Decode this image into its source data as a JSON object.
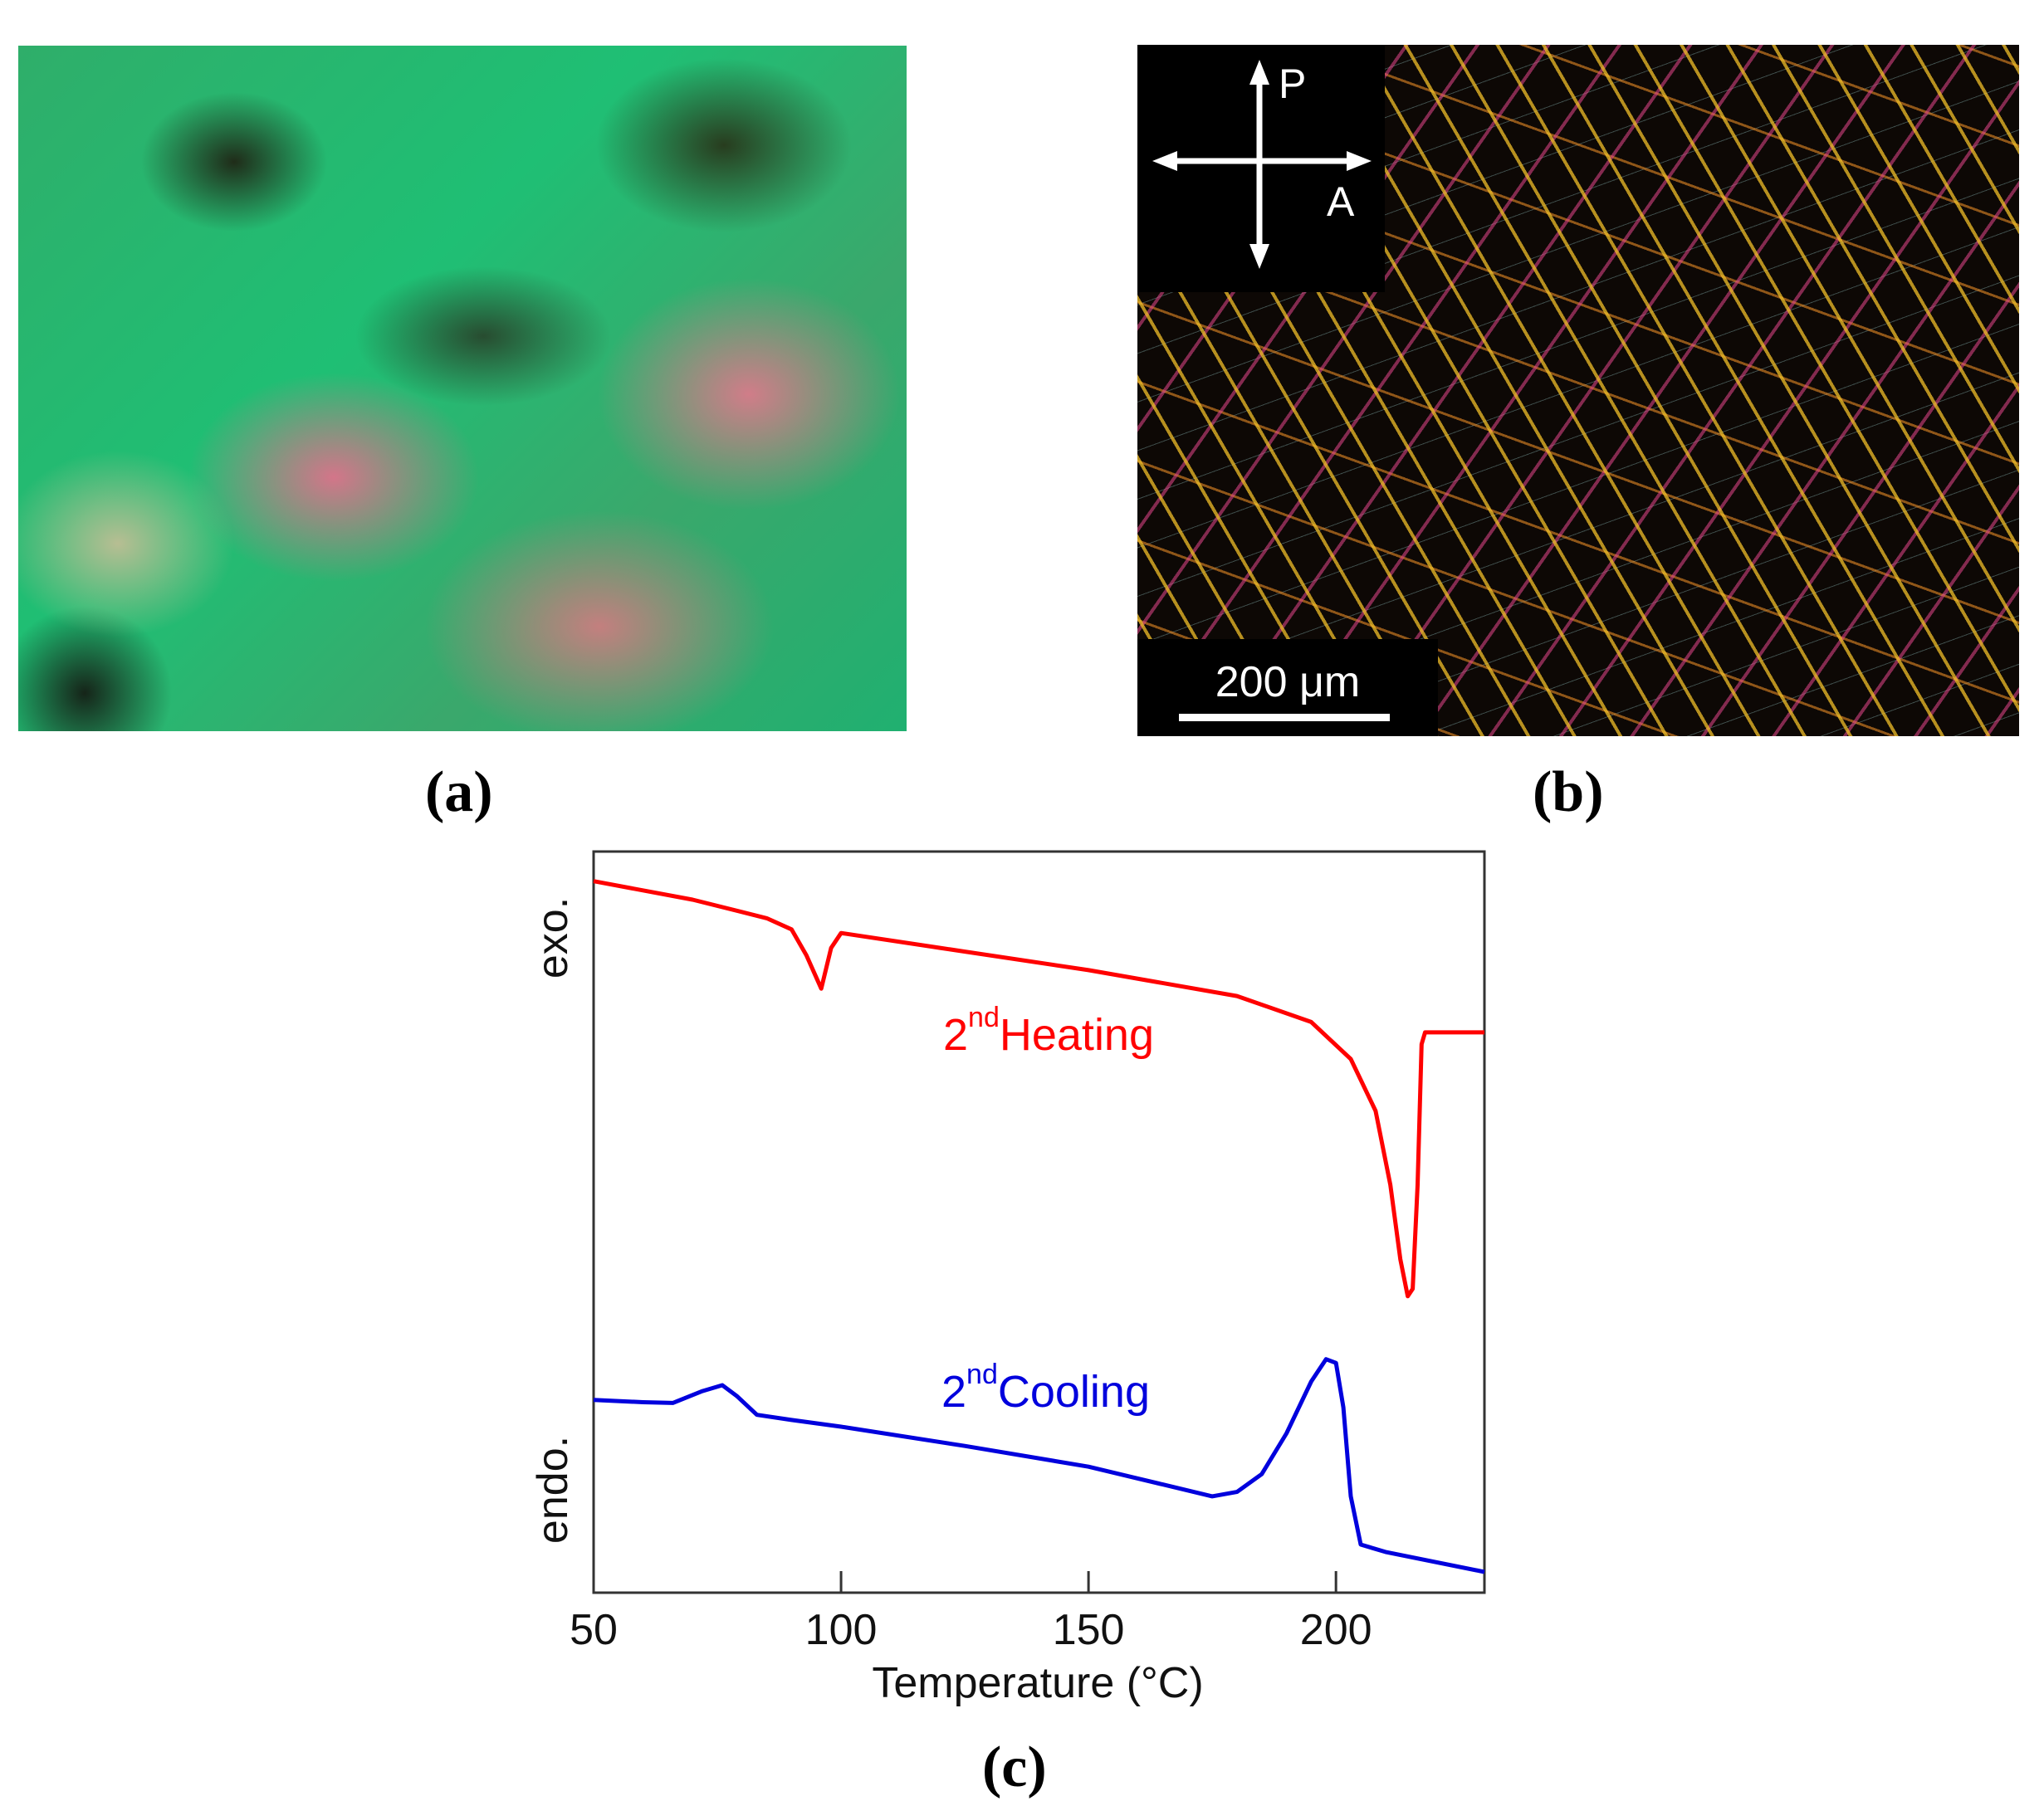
{
  "panels": {
    "a": {
      "caption": "(a)"
    },
    "b": {
      "caption": "(b)",
      "polarizer_label": "P",
      "analyzer_label": "A",
      "scale_bar": "200 μm"
    },
    "c": {
      "caption": "(c)"
    }
  },
  "chart_data": {
    "type": "line",
    "title": "",
    "xlabel": "Temperature (°C)",
    "ylabel_top": "exo.",
    "ylabel_bottom": "endo.",
    "xlim": [
      50,
      230
    ],
    "ylim": [
      0,
      100
    ],
    "xticks": [
      50,
      100,
      150,
      200
    ],
    "xtick_labels": [
      "50",
      "100",
      "150",
      "200"
    ],
    "grid": false,
    "series": [
      {
        "name": "2nd Heating",
        "label_main": "2",
        "label_sup": "nd",
        "label_text": "Heating",
        "color": "#ff0000",
        "x": [
          50,
          70,
          85,
          90,
          93,
          96,
          98,
          100,
          120,
          150,
          180,
          195,
          203,
          208,
          211,
          213,
          214.5,
          215.5,
          216.5,
          217.3,
          218,
          230
        ],
        "y": [
          96,
          93.5,
          91,
          89.5,
          86,
          81.5,
          87,
          89,
          87,
          84,
          80.5,
          77,
          72,
          65,
          55,
          45,
          40,
          41,
          55,
          74,
          75.6,
          75.6
        ]
      },
      {
        "name": "2nd Cooling",
        "label_main": "2",
        "label_sup": "nd",
        "label_text": "Cooling",
        "color": "#0000dd",
        "x": [
          50,
          60,
          66,
          72,
          76,
          79,
          83,
          90,
          100,
          125,
          150,
          165,
          175,
          180,
          185,
          190,
          195,
          198,
          200,
          201.5,
          203,
          205,
          210,
          230
        ],
        "y": [
          26,
          25.7,
          25.6,
          27.2,
          28,
          26.5,
          24,
          23.3,
          22.4,
          19.8,
          17,
          14.6,
          13,
          13.6,
          16,
          21.5,
          28.5,
          31.5,
          31,
          25,
          13,
          6.5,
          5.5,
          2.8
        ]
      }
    ]
  }
}
